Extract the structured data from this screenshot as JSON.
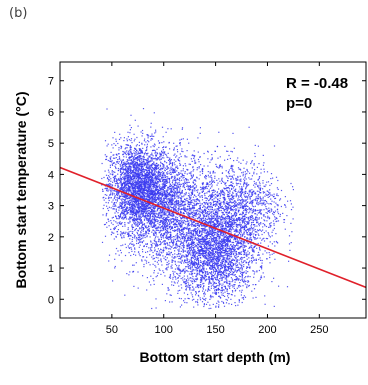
{
  "panel_label": "(b)",
  "chart_data": {
    "type": "scatter",
    "title": "",
    "xlabel": "Bottom start depth (m)",
    "ylabel": "Bottom start temperature (°C)",
    "xlim": [
      0,
      295
    ],
    "ylim": [
      -0.6,
      7.6
    ],
    "xticks": [
      50,
      100,
      150,
      200,
      250
    ],
    "yticks": [
      0,
      1,
      2,
      3,
      4,
      5,
      6,
      7
    ],
    "grid": false,
    "annotations": [
      "R = -0.48",
      "p=0"
    ],
    "series": [
      {
        "marker_color": "#3b3bf0",
        "point_count_approx": 9000,
        "clusters": [
          {
            "x_mean": 75,
            "y_mean": 3.6,
            "x_sd": 15,
            "y_sd": 0.7,
            "weight": 0.28
          },
          {
            "x_mean": 100,
            "y_mean": 3.0,
            "x_sd": 22,
            "y_sd": 0.9,
            "weight": 0.22
          },
          {
            "x_mean": 150,
            "y_mean": 1.5,
            "x_sd": 20,
            "y_sd": 0.8,
            "weight": 0.28
          },
          {
            "x_mean": 175,
            "y_mean": 3.0,
            "x_sd": 20,
            "y_sd": 0.7,
            "weight": 0.12
          },
          {
            "x_mean": 130,
            "y_mean": 2.3,
            "x_sd": 28,
            "y_sd": 1.1,
            "weight": 0.1
          }
        ],
        "x_range": [
          40,
          225
        ],
        "y_range": [
          -0.3,
          7.0
        ]
      }
    ],
    "regression_line": {
      "color": "#e0202a",
      "x": [
        0,
        295
      ],
      "y": [
        4.22,
        0.38
      ]
    }
  }
}
